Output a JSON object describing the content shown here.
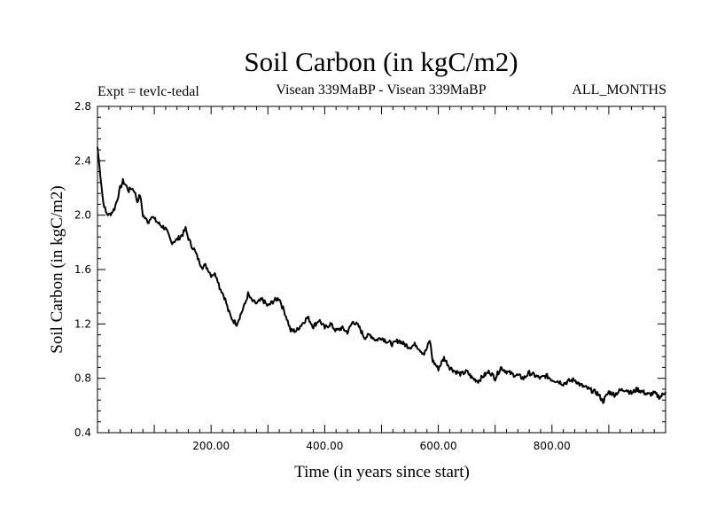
{
  "chart_data": {
    "type": "line",
    "title": "Soil Carbon (in kgC/m2)",
    "subtitle_left": "Expt = tevlc-tedal",
    "subtitle_center": "Visean 339MaBP - Visean 339MaBP",
    "subtitle_right": "ALL_MONTHS",
    "xlabel": "Time (in years since start)",
    "ylabel": "Soil Carbon (in kgC/m2)",
    "xlim": [
      0,
      1000
    ],
    "ylim": [
      0.4,
      2.8
    ],
    "xticks": [
      200,
      400,
      600,
      800
    ],
    "xtick_labels": [
      "200.00",
      "400.00",
      "600.00",
      "800.00"
    ],
    "yticks": [
      0.4,
      0.8,
      1.2,
      1.6,
      2.0,
      2.4,
      2.8
    ],
    "ytick_labels": [
      "0.4",
      "0.8",
      "1.2",
      "1.6",
      "2.0",
      "2.4",
      "2.8"
    ],
    "series": [
      {
        "name": "Soil Carbon",
        "color": "#000000",
        "x": [
          0,
          5,
          10,
          15,
          20,
          25,
          30,
          35,
          40,
          45,
          50,
          55,
          60,
          65,
          70,
          75,
          80,
          85,
          90,
          95,
          100,
          110,
          120,
          130,
          140,
          150,
          155,
          160,
          165,
          170,
          175,
          180,
          185,
          190,
          195,
          200,
          205,
          210,
          215,
          220,
          225,
          230,
          235,
          240,
          245,
          250,
          255,
          260,
          265,
          270,
          275,
          280,
          290,
          300,
          310,
          320,
          325,
          330,
          335,
          340,
          350,
          360,
          370,
          380,
          390,
          400,
          410,
          420,
          430,
          440,
          450,
          460,
          470,
          480,
          490,
          500,
          510,
          520,
          530,
          540,
          550,
          560,
          570,
          575,
          580,
          585,
          590,
          600,
          610,
          620,
          630,
          640,
          650,
          660,
          670,
          680,
          690,
          700,
          710,
          720,
          730,
          740,
          750,
          760,
          770,
          780,
          790,
          800,
          810,
          820,
          830,
          840,
          850,
          860,
          870,
          880,
          890,
          900,
          910,
          920,
          930,
          940,
          950,
          960,
          970,
          980,
          990,
          1000
        ],
        "y": [
          2.5,
          2.3,
          2.1,
          2.02,
          2.0,
          2.02,
          2.05,
          2.12,
          2.2,
          2.25,
          2.22,
          2.18,
          2.2,
          2.18,
          2.1,
          2.15,
          2.0,
          1.97,
          1.95,
          2.0,
          1.97,
          1.93,
          1.9,
          1.8,
          1.82,
          1.86,
          1.9,
          1.83,
          1.78,
          1.75,
          1.7,
          1.65,
          1.62,
          1.63,
          1.6,
          1.56,
          1.57,
          1.55,
          1.47,
          1.43,
          1.38,
          1.3,
          1.25,
          1.22,
          1.2,
          1.25,
          1.3,
          1.35,
          1.42,
          1.38,
          1.36,
          1.35,
          1.38,
          1.33,
          1.37,
          1.39,
          1.33,
          1.28,
          1.22,
          1.15,
          1.15,
          1.2,
          1.25,
          1.18,
          1.23,
          1.17,
          1.2,
          1.15,
          1.17,
          1.14,
          1.22,
          1.18,
          1.1,
          1.12,
          1.08,
          1.1,
          1.07,
          1.05,
          1.08,
          1.05,
          1.03,
          1.05,
          1.0,
          0.98,
          1.02,
          1.08,
          0.93,
          0.87,
          0.95,
          0.88,
          0.85,
          0.83,
          0.85,
          0.8,
          0.78,
          0.82,
          0.85,
          0.8,
          0.88,
          0.85,
          0.83,
          0.82,
          0.8,
          0.84,
          0.82,
          0.8,
          0.82,
          0.79,
          0.78,
          0.76,
          0.78,
          0.79,
          0.75,
          0.73,
          0.71,
          0.69,
          0.63,
          0.7,
          0.68,
          0.71,
          0.72,
          0.69,
          0.72,
          0.7,
          0.68,
          0.69,
          0.66,
          0.7
        ]
      }
    ]
  }
}
